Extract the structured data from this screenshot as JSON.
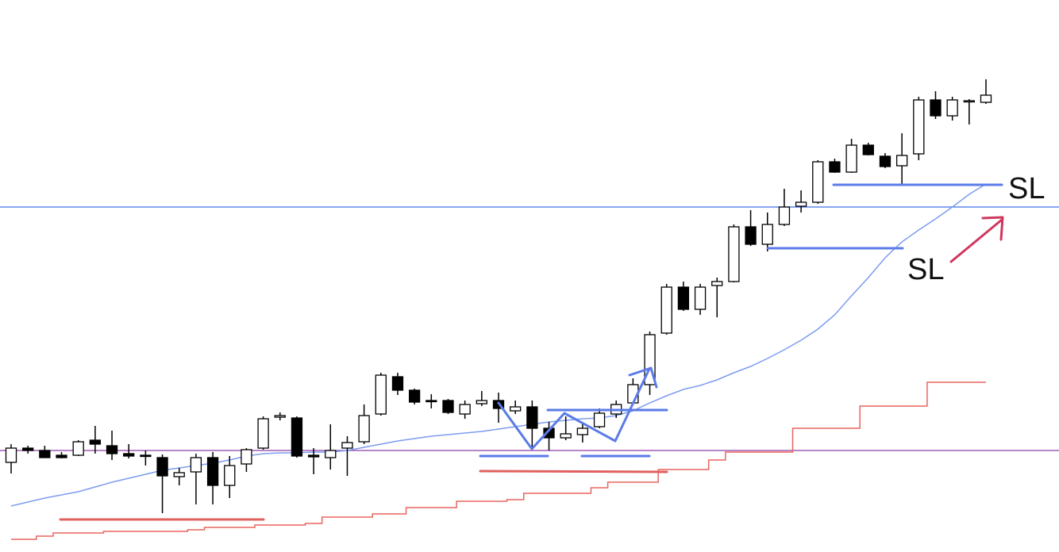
{
  "chart_data": {
    "type": "candlestick",
    "ylim": [
      0,
      696
    ],
    "open": [
      113,
      131,
      128,
      122,
      122,
      141,
      134,
      124,
      122,
      119,
      95,
      101,
      119,
      84,
      111,
      131,
      170,
      169,
      122,
      119,
      131,
      139,
      174,
      221,
      204,
      191,
      191,
      174,
      187,
      191,
      178,
      183,
      156,
      144,
      148,
      158,
      174,
      188,
      211,
      276,
      334,
      306,
      336,
      341,
      410,
      388,
      413,
      436,
      441,
      492,
      479,
      513,
      499,
      487,
      502,
      570,
      550,
      568,
      567
    ],
    "high": [
      136,
      134,
      134,
      126,
      141,
      159,
      153,
      136,
      128,
      123,
      106,
      124,
      126,
      121,
      131,
      171,
      176,
      171,
      131,
      161,
      146,
      186,
      226,
      226,
      206,
      199,
      193,
      191,
      203,
      201,
      191,
      191,
      164,
      171,
      164,
      181,
      191,
      219,
      278,
      338,
      341,
      338,
      346,
      413,
      431,
      428,
      458,
      456,
      494,
      496,
      521,
      516,
      503,
      528,
      574,
      581,
      574,
      571,
      596
    ],
    "low": [
      99,
      124,
      119,
      118,
      121,
      124,
      116,
      118,
      109,
      49,
      84,
      60,
      60,
      68,
      101,
      129,
      166,
      119,
      98,
      104,
      96,
      136,
      172,
      198,
      186,
      181,
      174,
      168,
      184,
      163,
      174,
      129,
      128,
      141,
      138,
      156,
      169,
      186,
      198,
      274,
      304,
      299,
      296,
      340,
      386,
      379,
      411,
      428,
      439,
      478,
      478,
      500,
      484,
      463,
      494,
      546,
      544,
      539,
      565
    ],
    "close": [
      131,
      128,
      119,
      119,
      139,
      136,
      124,
      121,
      121,
      96,
      100,
      119,
      84,
      109,
      129,
      168,
      172,
      121,
      120,
      128,
      138,
      172,
      223,
      204,
      189,
      190,
      176,
      186,
      191,
      181,
      183,
      156,
      144,
      149,
      156,
      175,
      186,
      211,
      274,
      334,
      306,
      334,
      341,
      410,
      388,
      413,
      435,
      441,
      492,
      479,
      513,
      501,
      486,
      500,
      570,
      550,
      570,
      569,
      576
    ],
    "up_color": "#ffffff",
    "down_color": "#000000",
    "ma": {
      "color": "#7d9cf0",
      "values": [
        58,
        63,
        68,
        72,
        76,
        82,
        88,
        93,
        98,
        103,
        106,
        109,
        112,
        116,
        121,
        124,
        125,
        125,
        126,
        126,
        128,
        132,
        136,
        140,
        143,
        146,
        148,
        150,
        152,
        155,
        158,
        161,
        164,
        166,
        168,
        169,
        172,
        178,
        188,
        197,
        205,
        210,
        217,
        226,
        234,
        244,
        255,
        267,
        281,
        299,
        323,
        346,
        371,
        391,
        406,
        420,
        435,
        451,
        464
      ]
    },
    "step": {
      "color": "#e8655f",
      "values": [
        16,
        16,
        20,
        24,
        24,
        24,
        26,
        26,
        26,
        26,
        26,
        28,
        31,
        31,
        31,
        34,
        34,
        34,
        36,
        44,
        44,
        44,
        48,
        48,
        56,
        56,
        56,
        64,
        64,
        64,
        66,
        74,
        74,
        74,
        74,
        81,
        88,
        88,
        88,
        104,
        104,
        104,
        116,
        126,
        126,
        126,
        126,
        156,
        156,
        156,
        156,
        184,
        184,
        184,
        184,
        214,
        214,
        214,
        214
      ]
    },
    "hlines": [
      {
        "value": 435,
        "color": "#3f6fe6"
      },
      {
        "value": 128,
        "color": "#8e3fa8"
      }
    ],
    "annotations": [
      "SL",
      "SL"
    ]
  }
}
